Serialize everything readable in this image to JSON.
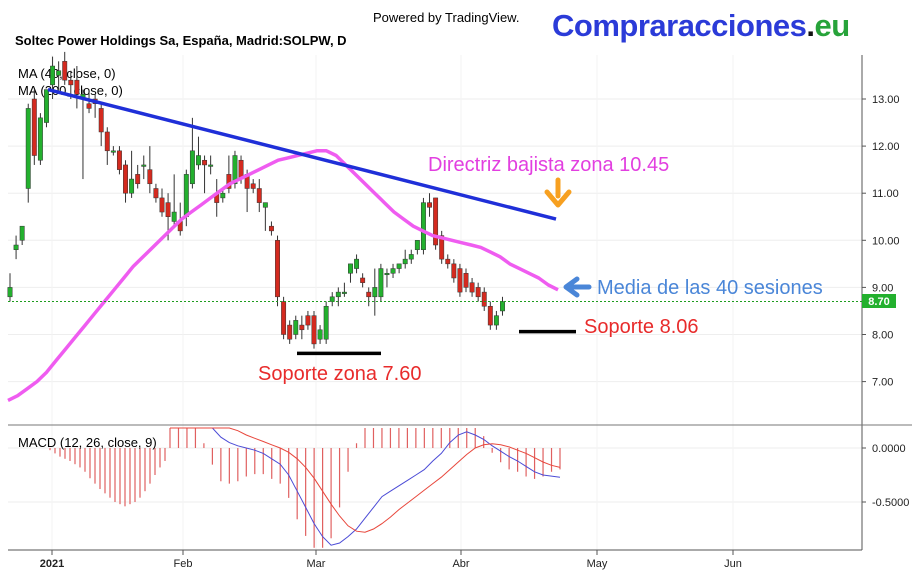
{
  "header": {
    "powered_by": "Powered by TradingView.",
    "brand_main": "Compraracciones",
    "brand_dot": ".",
    "brand_tld": "eu",
    "symbol_title": "Soltec Power Holdings Sa, España, Madrid:SOLPW, D"
  },
  "colors": {
    "up_candle": "#23b02e",
    "down_candle": "#d42a1f",
    "ma40": "#ef5cf0",
    "ma200": "#2b3bd8",
    "trend_line": "#1f2fd8",
    "support_line": "#000000",
    "price_line": "#1e9c1e",
    "macd_line": "#4b4bd6",
    "signal_line": "#e8473c",
    "histogram": "#e06060",
    "annotation_red": "#e82b2b",
    "annotation_magenta": "#e23fe0",
    "annotation_blue": "#4a86d8",
    "arrow_orange": "#f7a020"
  },
  "chart_data": [
    {
      "type": "candlestick",
      "title": "Soltec Power Holdings Sa, España, Madrid:SOLPW, D",
      "legend": [
        "MA (40, close, 0)",
        "MA (200, close, 0)"
      ],
      "x_ticks": [
        "2021",
        "Feb",
        "Mar",
        "Abr",
        "May",
        "Jun"
      ],
      "y_ticks": [
        "13.00",
        "12.00",
        "11.00",
        "10.00",
        "9.00",
        "8.00",
        "7.00"
      ],
      "ylim": [
        6.2,
        13.9
      ],
      "last_price": "8.70",
      "candles": [
        {
          "o": 8.8,
          "h": 9.3,
          "l": 8.7,
          "c": 9.0
        },
        {
          "o": 9.8,
          "h": 10.1,
          "l": 9.6,
          "c": 9.9
        },
        {
          "o": 10.0,
          "h": 10.3,
          "l": 9.9,
          "c": 10.3
        },
        {
          "o": 11.1,
          "h": 12.9,
          "l": 10.8,
          "c": 12.8
        },
        {
          "o": 13.0,
          "h": 13.2,
          "l": 11.6,
          "c": 11.8
        },
        {
          "o": 11.7,
          "h": 12.7,
          "l": 11.6,
          "c": 12.6
        },
        {
          "o": 12.5,
          "h": 13.2,
          "l": 12.4,
          "c": 13.2
        },
        {
          "o": 13.3,
          "h": 13.9,
          "l": 13.0,
          "c": 13.7
        },
        {
          "o": 13.5,
          "h": 13.8,
          "l": 13.2,
          "c": 13.6
        },
        {
          "o": 13.8,
          "h": 14.0,
          "l": 13.3,
          "c": 13.4
        },
        {
          "o": 13.4,
          "h": 13.6,
          "l": 13.0,
          "c": 13.3
        },
        {
          "o": 13.4,
          "h": 13.7,
          "l": 12.8,
          "c": 13.1
        },
        {
          "o": 13.0,
          "h": 13.2,
          "l": 11.3,
          "c": 13.1
        },
        {
          "o": 12.9,
          "h": 13.2,
          "l": 12.7,
          "c": 12.8
        },
        {
          "o": 13.0,
          "h": 13.1,
          "l": 12.6,
          "c": 12.9
        },
        {
          "o": 12.8,
          "h": 12.9,
          "l": 12.0,
          "c": 12.3
        },
        {
          "o": 12.3,
          "h": 12.4,
          "l": 11.6,
          "c": 11.9
        },
        {
          "o": 11.9,
          "h": 12.0,
          "l": 11.8,
          "c": 11.9
        },
        {
          "o": 11.9,
          "h": 12.0,
          "l": 11.4,
          "c": 11.5
        },
        {
          "o": 11.6,
          "h": 11.7,
          "l": 10.8,
          "c": 11.0
        },
        {
          "o": 11.0,
          "h": 11.9,
          "l": 10.9,
          "c": 11.3
        },
        {
          "o": 11.4,
          "h": 11.6,
          "l": 11.1,
          "c": 11.2
        },
        {
          "o": 11.6,
          "h": 11.8,
          "l": 11.3,
          "c": 11.6
        },
        {
          "o": 11.5,
          "h": 12.0,
          "l": 11.0,
          "c": 11.2
        },
        {
          "o": 11.1,
          "h": 11.2,
          "l": 10.8,
          "c": 10.9
        },
        {
          "o": 10.9,
          "h": 11.1,
          "l": 10.5,
          "c": 10.6
        },
        {
          "o": 10.8,
          "h": 11.0,
          "l": 10.0,
          "c": 10.5
        },
        {
          "o": 10.4,
          "h": 11.4,
          "l": 10.3,
          "c": 10.6
        },
        {
          "o": 10.4,
          "h": 10.8,
          "l": 10.1,
          "c": 10.2
        },
        {
          "o": 10.5,
          "h": 11.5,
          "l": 10.3,
          "c": 11.4
        },
        {
          "o": 11.2,
          "h": 12.6,
          "l": 11.1,
          "c": 11.9
        },
        {
          "o": 11.6,
          "h": 12.2,
          "l": 11.5,
          "c": 11.8
        },
        {
          "o": 11.7,
          "h": 11.8,
          "l": 11.0,
          "c": 11.6
        },
        {
          "o": 11.6,
          "h": 11.8,
          "l": 11.4,
          "c": 11.6
        },
        {
          "o": 11.0,
          "h": 11.3,
          "l": 10.5,
          "c": 10.8
        },
        {
          "o": 10.9,
          "h": 11.1,
          "l": 10.8,
          "c": 11.0
        },
        {
          "o": 11.4,
          "h": 11.8,
          "l": 11.0,
          "c": 11.1
        },
        {
          "o": 11.2,
          "h": 11.9,
          "l": 11.1,
          "c": 11.8
        },
        {
          "o": 11.7,
          "h": 11.8,
          "l": 11.2,
          "c": 11.3
        },
        {
          "o": 11.4,
          "h": 11.5,
          "l": 10.6,
          "c": 11.1
        },
        {
          "o": 11.2,
          "h": 11.3,
          "l": 11.0,
          "c": 11.1
        },
        {
          "o": 11.1,
          "h": 11.3,
          "l": 10.6,
          "c": 10.8
        },
        {
          "o": 10.7,
          "h": 10.8,
          "l": 10.2,
          "c": 10.8
        },
        {
          "o": 10.3,
          "h": 10.4,
          "l": 10.1,
          "c": 10.2
        },
        {
          "o": 10.0,
          "h": 10.1,
          "l": 8.6,
          "c": 8.8
        },
        {
          "o": 8.7,
          "h": 8.8,
          "l": 7.9,
          "c": 8.0
        },
        {
          "o": 8.2,
          "h": 8.3,
          "l": 7.8,
          "c": 7.9
        },
        {
          "o": 8.0,
          "h": 8.4,
          "l": 7.9,
          "c": 8.3
        },
        {
          "o": 8.2,
          "h": 8.4,
          "l": 7.9,
          "c": 8.1
        },
        {
          "o": 8.4,
          "h": 8.5,
          "l": 8.1,
          "c": 8.2
        },
        {
          "o": 8.4,
          "h": 8.5,
          "l": 7.7,
          "c": 7.8
        },
        {
          "o": 7.9,
          "h": 8.2,
          "l": 7.8,
          "c": 8.1
        },
        {
          "o": 7.9,
          "h": 8.7,
          "l": 7.8,
          "c": 8.6
        },
        {
          "o": 8.7,
          "h": 8.9,
          "l": 8.6,
          "c": 8.8
        },
        {
          "o": 8.8,
          "h": 9.0,
          "l": 8.6,
          "c": 8.9
        },
        {
          "o": 8.9,
          "h": 9.1,
          "l": 8.8,
          "c": 8.9
        },
        {
          "o": 9.3,
          "h": 9.5,
          "l": 9.1,
          "c": 9.5
        },
        {
          "o": 9.4,
          "h": 9.7,
          "l": 9.3,
          "c": 9.6
        },
        {
          "o": 9.2,
          "h": 9.3,
          "l": 9.0,
          "c": 9.1
        },
        {
          "o": 8.9,
          "h": 9.0,
          "l": 8.6,
          "c": 8.8
        },
        {
          "o": 8.8,
          "h": 9.4,
          "l": 8.4,
          "c": 9.0
        },
        {
          "o": 8.8,
          "h": 9.5,
          "l": 8.7,
          "c": 9.4
        },
        {
          "o": 9.3,
          "h": 9.4,
          "l": 9.0,
          "c": 9.3
        },
        {
          "o": 9.3,
          "h": 9.5,
          "l": 9.2,
          "c": 9.4
        },
        {
          "o": 9.4,
          "h": 9.5,
          "l": 9.3,
          "c": 9.5
        },
        {
          "o": 9.5,
          "h": 9.8,
          "l": 9.4,
          "c": 9.6
        },
        {
          "o": 9.6,
          "h": 9.8,
          "l": 9.5,
          "c": 9.7
        },
        {
          "o": 9.8,
          "h": 10.0,
          "l": 9.7,
          "c": 10.0
        },
        {
          "o": 9.8,
          "h": 10.9,
          "l": 9.7,
          "c": 10.8
        },
        {
          "o": 10.8,
          "h": 11.0,
          "l": 10.5,
          "c": 10.7
        },
        {
          "o": 10.9,
          "h": 10.9,
          "l": 9.8,
          "c": 9.9
        },
        {
          "o": 10.1,
          "h": 10.2,
          "l": 9.5,
          "c": 9.6
        },
        {
          "o": 9.6,
          "h": 9.7,
          "l": 9.4,
          "c": 9.5
        },
        {
          "o": 9.5,
          "h": 9.6,
          "l": 9.1,
          "c": 9.2
        },
        {
          "o": 9.4,
          "h": 9.5,
          "l": 8.8,
          "c": 8.9
        },
        {
          "o": 9.3,
          "h": 9.4,
          "l": 8.9,
          "c": 9.0
        },
        {
          "o": 9.1,
          "h": 9.2,
          "l": 8.8,
          "c": 8.9
        },
        {
          "o": 9.0,
          "h": 9.1,
          "l": 8.7,
          "c": 8.8
        },
        {
          "o": 8.9,
          "h": 9.0,
          "l": 8.5,
          "c": 8.6
        },
        {
          "o": 8.6,
          "h": 8.7,
          "l": 8.1,
          "c": 8.2
        },
        {
          "o": 8.2,
          "h": 8.5,
          "l": 8.1,
          "c": 8.4
        },
        {
          "o": 8.5,
          "h": 8.8,
          "l": 8.4,
          "c": 8.7
        }
      ],
      "ma40": [
        6.6,
        6.7,
        6.85,
        7.0,
        7.2,
        7.45,
        7.7,
        7.95,
        8.2,
        8.45,
        8.7,
        8.95,
        9.2,
        9.45,
        9.65,
        9.85,
        10.05,
        10.25,
        10.45,
        10.6,
        10.75,
        10.9,
        11.05,
        11.2,
        11.3,
        11.4,
        11.5,
        11.6,
        11.7,
        11.75,
        11.8,
        11.85,
        11.9,
        11.9,
        11.8,
        11.6,
        11.4,
        11.2,
        11.0,
        10.8,
        10.6,
        10.45,
        10.3,
        10.2,
        10.1,
        10.05,
        10.0,
        9.95,
        9.9,
        9.85,
        9.75,
        9.65,
        9.5,
        9.4,
        9.3,
        9.2,
        9.05,
        8.95
      ],
      "trend_line": [
        {
          "x": "start",
          "y": 13.2
        },
        {
          "x": "end",
          "y": 10.45
        }
      ],
      "annotations": [
        "Directriz bajista zona 10.45",
        "Media de las 40 sesiones",
        "Soporte 8.06",
        "Soporte zona 7.60"
      ]
    },
    {
      "type": "macd",
      "title": "MACD (12, 26, close, 9)",
      "y_ticks": [
        "0.0000",
        "-0.5000"
      ],
      "macd": [
        0.3,
        0.35,
        0.4,
        0.38,
        0.3,
        0.2,
        0.1,
        0.05,
        0.02,
        0.0,
        -0.02,
        -0.05,
        -0.1,
        -0.15,
        -0.25,
        -0.4,
        -0.55,
        -0.7,
        -0.82,
        -0.9,
        -0.88,
        -0.82,
        -0.75,
        -0.65,
        -0.55,
        -0.45,
        -0.4,
        -0.35,
        -0.3,
        -0.25,
        -0.2,
        -0.12,
        -0.05,
        0.05,
        0.12,
        0.15,
        0.12,
        0.08,
        0.02,
        -0.03,
        -0.08,
        -0.12,
        -0.17,
        -0.22,
        -0.25,
        -0.26,
        -0.27
      ],
      "signal": [
        0.2,
        0.22,
        0.25,
        0.27,
        0.28,
        0.27,
        0.24,
        0.2,
        0.16,
        0.12,
        0.09,
        0.06,
        0.03,
        0.0,
        -0.04,
        -0.1,
        -0.18,
        -0.28,
        -0.4,
        -0.52,
        -0.63,
        -0.72,
        -0.77,
        -0.78,
        -0.75,
        -0.7,
        -0.64,
        -0.57,
        -0.51,
        -0.45,
        -0.39,
        -0.33,
        -0.27,
        -0.2,
        -0.13,
        -0.06,
        0.0,
        0.03,
        0.04,
        0.03,
        0.01,
        -0.02,
        -0.05,
        -0.09,
        -0.13,
        -0.16,
        -0.18
      ]
    }
  ]
}
